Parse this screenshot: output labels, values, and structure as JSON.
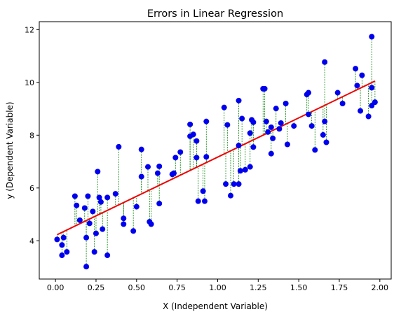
{
  "chart_data": {
    "type": "scatter",
    "title": "Errors in Linear Regression",
    "xlabel": "X (Independent Variable)",
    "ylabel": "y (Dependent Variable)",
    "xlim": [
      -0.1,
      2.07
    ],
    "ylim": [
      2.55,
      12.3
    ],
    "xticks": [
      0.0,
      0.25,
      0.5,
      0.75,
      1.0,
      1.25,
      1.5,
      1.75,
      2.0
    ],
    "xtick_labels": [
      "0.00",
      "0.25",
      "0.50",
      "0.75",
      "1.00",
      "1.25",
      "1.50",
      "1.75",
      "2.00"
    ],
    "yticks": [
      4,
      6,
      8,
      10,
      12
    ],
    "ytick_labels": [
      "4",
      "6",
      "8",
      "10",
      "12"
    ],
    "grid": false,
    "colors": {
      "points": "#0000ee",
      "regression_line": "#ee0000",
      "residuals": "#008000"
    },
    "regression_line": {
      "intercept": 4.2,
      "slope": 2.97,
      "x_range": [
        0.01,
        1.97
      ]
    },
    "points": [
      {
        "x": 0.01,
        "y": 4.05
      },
      {
        "x": 0.04,
        "y": 3.84
      },
      {
        "x": 0.04,
        "y": 3.45
      },
      {
        "x": 0.05,
        "y": 4.12
      },
      {
        "x": 0.07,
        "y": 3.58
      },
      {
        "x": 0.12,
        "y": 5.69
      },
      {
        "x": 0.13,
        "y": 5.34
      },
      {
        "x": 0.15,
        "y": 4.78
      },
      {
        "x": 0.18,
        "y": 5.24
      },
      {
        "x": 0.19,
        "y": 3.02
      },
      {
        "x": 0.19,
        "y": 4.12
      },
      {
        "x": 0.2,
        "y": 5.69
      },
      {
        "x": 0.21,
        "y": 4.66
      },
      {
        "x": 0.23,
        "y": 5.11
      },
      {
        "x": 0.24,
        "y": 3.58
      },
      {
        "x": 0.25,
        "y": 4.28
      },
      {
        "x": 0.26,
        "y": 6.62
      },
      {
        "x": 0.27,
        "y": 5.64
      },
      {
        "x": 0.28,
        "y": 5.47
      },
      {
        "x": 0.29,
        "y": 4.44
      },
      {
        "x": 0.32,
        "y": 5.64
      },
      {
        "x": 0.32,
        "y": 3.45
      },
      {
        "x": 0.37,
        "y": 5.78
      },
      {
        "x": 0.39,
        "y": 7.56
      },
      {
        "x": 0.42,
        "y": 4.85
      },
      {
        "x": 0.42,
        "y": 4.63
      },
      {
        "x": 0.48,
        "y": 4.37
      },
      {
        "x": 0.5,
        "y": 5.29
      },
      {
        "x": 0.53,
        "y": 7.46
      },
      {
        "x": 0.53,
        "y": 6.43
      },
      {
        "x": 0.57,
        "y": 6.8
      },
      {
        "x": 0.58,
        "y": 4.72
      },
      {
        "x": 0.59,
        "y": 4.63
      },
      {
        "x": 0.63,
        "y": 6.56
      },
      {
        "x": 0.64,
        "y": 5.41
      },
      {
        "x": 0.64,
        "y": 6.82
      },
      {
        "x": 0.72,
        "y": 6.52
      },
      {
        "x": 0.73,
        "y": 6.56
      },
      {
        "x": 0.74,
        "y": 7.15
      },
      {
        "x": 0.77,
        "y": 7.36
      },
      {
        "x": 0.83,
        "y": 8.41
      },
      {
        "x": 0.83,
        "y": 7.96
      },
      {
        "x": 0.85,
        "y": 8.03
      },
      {
        "x": 0.87,
        "y": 7.78
      },
      {
        "x": 0.87,
        "y": 7.15
      },
      {
        "x": 0.88,
        "y": 5.5
      },
      {
        "x": 0.91,
        "y": 5.88
      },
      {
        "x": 0.92,
        "y": 5.5
      },
      {
        "x": 0.93,
        "y": 8.52
      },
      {
        "x": 0.93,
        "y": 7.18
      },
      {
        "x": 1.04,
        "y": 9.05
      },
      {
        "x": 1.05,
        "y": 6.15
      },
      {
        "x": 1.06,
        "y": 8.39
      },
      {
        "x": 1.08,
        "y": 5.71
      },
      {
        "x": 1.1,
        "y": 6.15
      },
      {
        "x": 1.13,
        "y": 9.31
      },
      {
        "x": 1.13,
        "y": 6.15
      },
      {
        "x": 1.13,
        "y": 7.61
      },
      {
        "x": 1.14,
        "y": 6.65
      },
      {
        "x": 1.15,
        "y": 8.63
      },
      {
        "x": 1.17,
        "y": 6.69
      },
      {
        "x": 1.2,
        "y": 8.08
      },
      {
        "x": 1.2,
        "y": 6.8
      },
      {
        "x": 1.21,
        "y": 8.58
      },
      {
        "x": 1.22,
        "y": 7.55
      },
      {
        "x": 1.22,
        "y": 8.49
      },
      {
        "x": 1.28,
        "y": 9.76
      },
      {
        "x": 1.29,
        "y": 9.76
      },
      {
        "x": 1.3,
        "y": 8.52
      },
      {
        "x": 1.31,
        "y": 8.12
      },
      {
        "x": 1.33,
        "y": 7.3
      },
      {
        "x": 1.33,
        "y": 8.3
      },
      {
        "x": 1.34,
        "y": 7.88
      },
      {
        "x": 1.36,
        "y": 9.01
      },
      {
        "x": 1.38,
        "y": 8.24
      },
      {
        "x": 1.39,
        "y": 8.46
      },
      {
        "x": 1.42,
        "y": 9.2
      },
      {
        "x": 1.43,
        "y": 7.65
      },
      {
        "x": 1.47,
        "y": 8.35
      },
      {
        "x": 1.55,
        "y": 9.54
      },
      {
        "x": 1.56,
        "y": 8.79
      },
      {
        "x": 1.56,
        "y": 9.61
      },
      {
        "x": 1.58,
        "y": 8.35
      },
      {
        "x": 1.6,
        "y": 7.44
      },
      {
        "x": 1.65,
        "y": 8.01
      },
      {
        "x": 1.66,
        "y": 8.52
      },
      {
        "x": 1.66,
        "y": 10.77
      },
      {
        "x": 1.67,
        "y": 7.73
      },
      {
        "x": 1.74,
        "y": 9.61
      },
      {
        "x": 1.77,
        "y": 9.2
      },
      {
        "x": 1.85,
        "y": 10.52
      },
      {
        "x": 1.86,
        "y": 9.88
      },
      {
        "x": 1.88,
        "y": 8.92
      },
      {
        "x": 1.89,
        "y": 10.27
      },
      {
        "x": 1.93,
        "y": 8.71
      },
      {
        "x": 1.95,
        "y": 11.73
      },
      {
        "x": 1.95,
        "y": 9.12
      },
      {
        "x": 1.95,
        "y": 9.8
      },
      {
        "x": 1.97,
        "y": 9.25
      }
    ]
  }
}
